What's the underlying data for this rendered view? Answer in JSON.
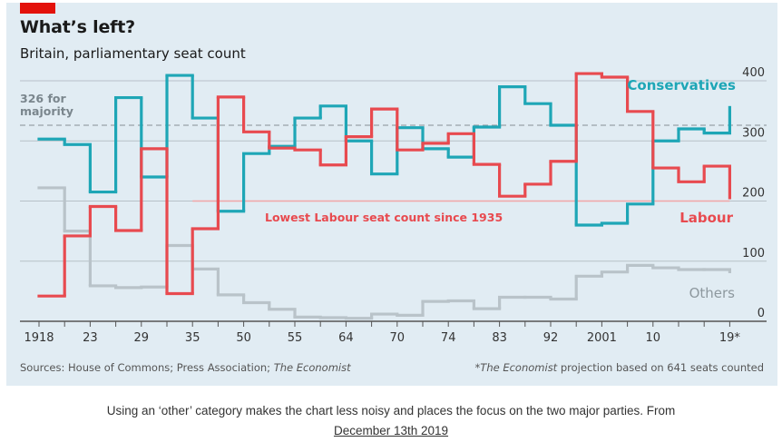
{
  "header": {
    "title": "What’s left?",
    "subtitle": "Britain, parliamentary seat count"
  },
  "footer": {
    "sources_prefix": "Sources: House of Commons;  Press Association; ",
    "sources_italic": "The Economist",
    "note_italic": "*The Economist",
    "note_rest": " projection based on 641 seats counted"
  },
  "caption": {
    "text": "Using an ‘other’ category makes the chart less noisy and places the focus on the two major parties. From",
    "link": "December 13th 2019"
  },
  "colors": {
    "conservatives": "#1ea6b6",
    "labour": "#e84a4f",
    "others": "#b9c3c9",
    "majority_line": "#9aa3a8",
    "grid": "#b7c1c8"
  },
  "chart_data": {
    "type": "line",
    "step": true,
    "title": "What’s left?",
    "subtitle": "Britain, parliamentary seat count",
    "xlabel": "",
    "ylabel": "",
    "ylim": [
      0,
      400
    ],
    "yticks": [
      0,
      100,
      200,
      300,
      400
    ],
    "y_axis_side": "right",
    "grid": true,
    "elections": [
      "1918",
      "1922",
      "1923",
      "1924",
      "1929",
      "1931",
      "1935",
      "1945",
      "1950",
      "1951",
      "1955",
      "1959",
      "1964",
      "1966",
      "1970",
      "1974 Feb",
      "1974 Oct",
      "1979",
      "1983",
      "1987",
      "1992",
      "1997",
      "2001",
      "2005",
      "2010",
      "2015",
      "2017",
      "2019*"
    ],
    "xtick_labels": [
      "1918",
      "",
      "23",
      "",
      "29",
      "",
      "35",
      "",
      "50",
      "",
      "55",
      "",
      "64",
      "",
      "70",
      "",
      "74",
      "",
      "83",
      "",
      "92",
      "",
      "2001",
      "",
      "10",
      "",
      "",
      "19*"
    ],
    "series": [
      {
        "name": "Conservatives",
        "values": [
          303,
          294,
          215,
          372,
          240,
          409,
          338,
          183,
          279,
          291,
          338,
          358,
          300,
          245,
          322,
          287,
          273,
          323,
          390,
          362,
          326,
          160,
          163,
          195,
          300,
          320,
          313,
          358
        ]
      },
      {
        "name": "Labour",
        "values": [
          42,
          142,
          191,
          151,
          287,
          46,
          154,
          373,
          315,
          288,
          285,
          260,
          307,
          353,
          285,
          296,
          312,
          261,
          208,
          228,
          266,
          412,
          406,
          349,
          255,
          232,
          258,
          203
        ]
      },
      {
        "name": "Others",
        "values": [
          222,
          150,
          59,
          56,
          57,
          126,
          87,
          44,
          31,
          20,
          7,
          6,
          5,
          12,
          10,
          33,
          34,
          21,
          40,
          40,
          37,
          75,
          82,
          93,
          89,
          86,
          86,
          80
        ]
      }
    ],
    "reference_lines": [
      {
        "label": "326 for majority",
        "value": 326,
        "style": "dashed"
      },
      {
        "label": "Lowest Labour seat count since 1935",
        "value": 203,
        "from": "1935",
        "color": "#f2a5a7"
      }
    ],
    "annotations": [
      {
        "text": "326 for\nmajority",
        "position": "top-left"
      },
      {
        "text": "Lowest Labour seat count since 1935"
      },
      {
        "text": "Conservatives",
        "series": "Conservatives"
      },
      {
        "text": "Labour",
        "series": "Labour"
      },
      {
        "text": "Others",
        "series": "Others"
      }
    ]
  }
}
